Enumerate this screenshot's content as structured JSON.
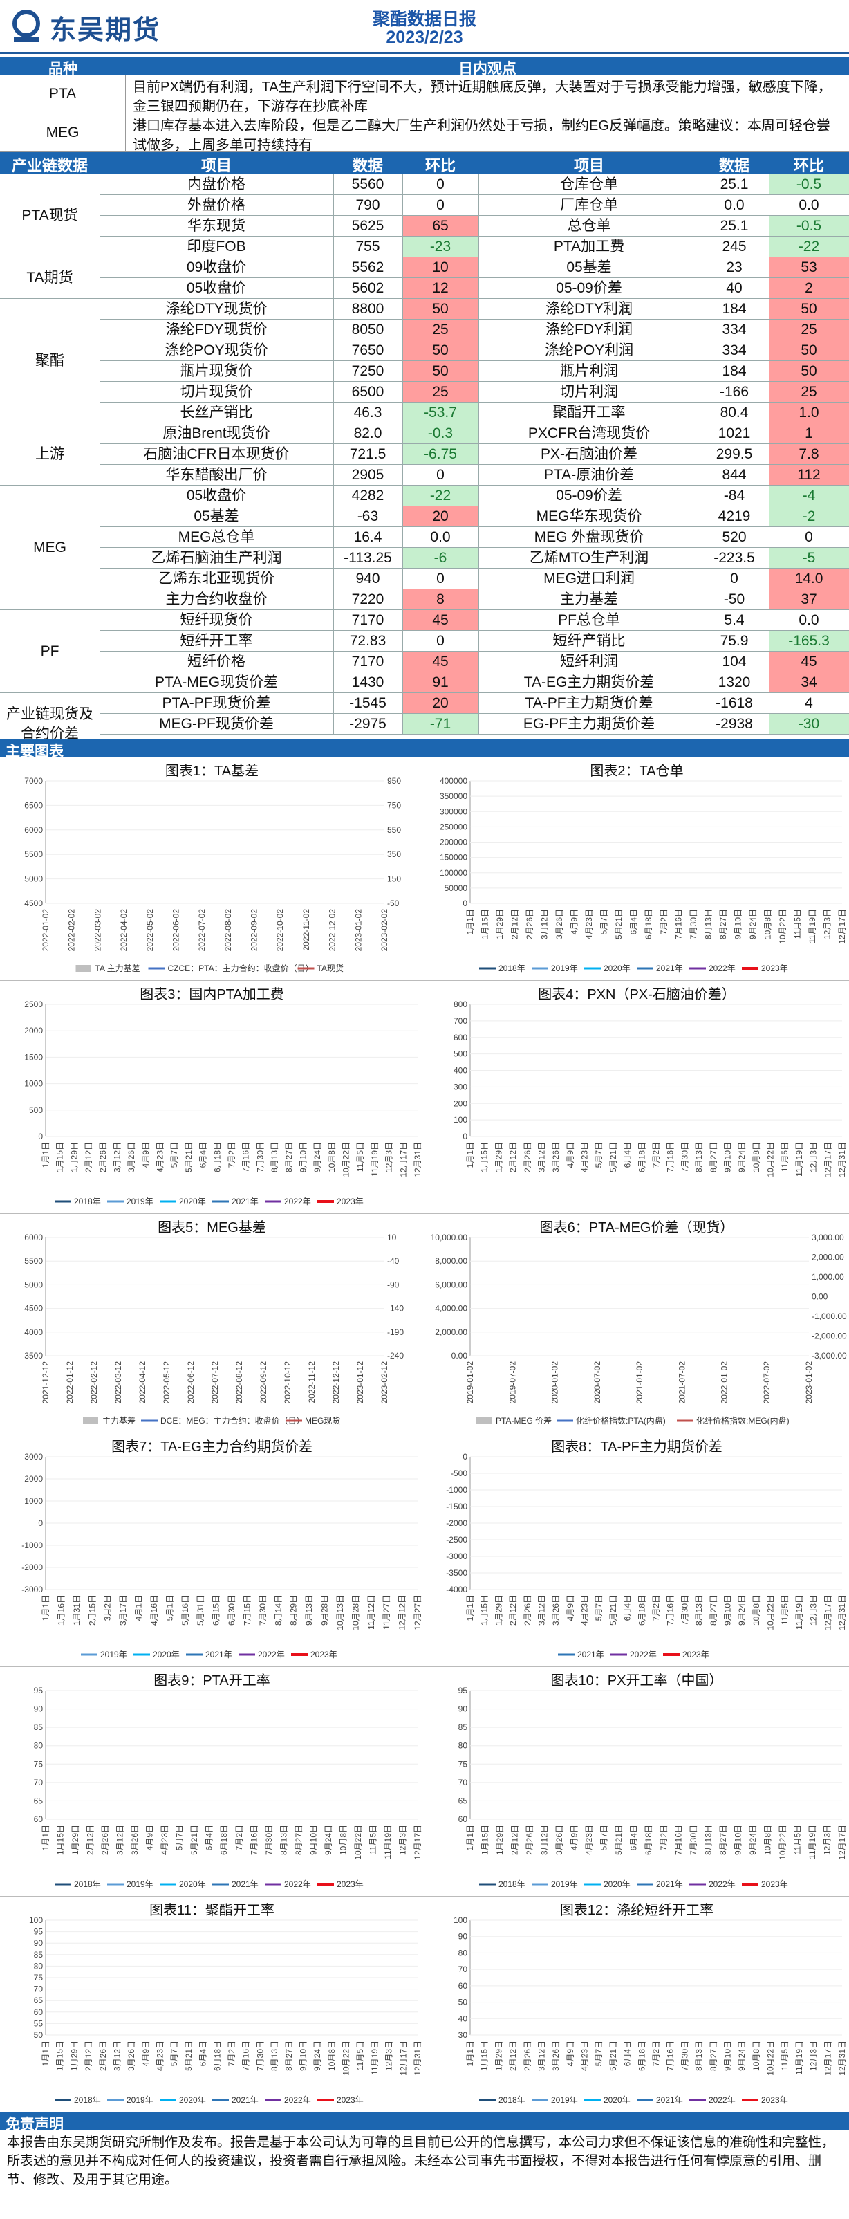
{
  "header": {
    "company": "东吴期货",
    "report_title": "聚酯数据日报",
    "report_date": "2023/2/23"
  },
  "views": {
    "head_category": "品种",
    "head_view": "日内观点",
    "rows": [
      {
        "label": "PTA",
        "text": "目前PX端仍有利润，TA生产利润下行空间不大，预计近期触底反弹，大装置对于亏损承受能力增强，敏感度下降，金三银四预期仍在，下游存在抄底补库"
      },
      {
        "label": "MEG",
        "text": "港口库存基本进入去库阶段，但是乙二醇大厂生产利润仍然处于亏损，制约EG反弹幅度。策略建议：本周可轻仓尝试做多，上周多单可持续持有"
      }
    ]
  },
  "table": {
    "headers": [
      "产业链数据",
      "项目",
      "数据",
      "环比",
      "项目",
      "数据",
      "环比"
    ],
    "categories": [
      {
        "name": "PTA现货",
        "rows": 4
      },
      {
        "name": "TA期货",
        "rows": 2
      },
      {
        "name": "聚酯",
        "rows": 6
      },
      {
        "name": "上游",
        "rows": 3
      },
      {
        "name": "MEG",
        "rows": 6
      },
      {
        "name": "PF",
        "rows": 4
      },
      {
        "name": "产业链现货及合约价差",
        "rows": 3
      }
    ],
    "rows": [
      {
        "l": "内盘价格",
        "lv": "5560",
        "lc": "0",
        "lcc": "",
        "r": "仓库仓单",
        "rv": "25.1",
        "rc": "-0.5",
        "rcc": "grn"
      },
      {
        "l": "外盘价格",
        "lv": "790",
        "lc": "0",
        "lcc": "",
        "r": "厂库仓单",
        "rv": "0.0",
        "rc": "0.0",
        "rcc": ""
      },
      {
        "l": "华东现货",
        "lv": "5625",
        "lc": "65",
        "lcc": "red",
        "r": "总仓单",
        "rv": "25.1",
        "rc": "-0.5",
        "rcc": "grn"
      },
      {
        "l": "印度FOB",
        "lv": "755",
        "lc": "-23",
        "lcc": "grn",
        "r": "PTA加工费",
        "rv": "245",
        "rc": "-22",
        "rcc": "grn"
      },
      {
        "l": "09收盘价",
        "lv": "5562",
        "lc": "10",
        "lcc": "red",
        "r": "05基差",
        "rv": "23",
        "rc": "53",
        "rcc": "red"
      },
      {
        "l": "05收盘价",
        "lv": "5602",
        "lc": "12",
        "lcc": "red",
        "r": "05-09价差",
        "rv": "40",
        "rc": "2",
        "rcc": "red"
      },
      {
        "l": "涤纶DTY现货价",
        "lv": "8800",
        "lc": "50",
        "lcc": "red",
        "r": "涤纶DTY利润",
        "rv": "184",
        "rc": "50",
        "rcc": "red"
      },
      {
        "l": "涤纶FDY现货价",
        "lv": "8050",
        "lc": "25",
        "lcc": "red",
        "r": "涤纶FDY利润",
        "rv": "334",
        "rc": "25",
        "rcc": "red"
      },
      {
        "l": "涤纶POY现货价",
        "lv": "7650",
        "lc": "50",
        "lcc": "red",
        "r": "涤纶POY利润",
        "rv": "334",
        "rc": "50",
        "rcc": "red"
      },
      {
        "l": "瓶片现货价",
        "lv": "7250",
        "lc": "50",
        "lcc": "red",
        "r": "瓶片利润",
        "rv": "184",
        "rc": "50",
        "rcc": "red"
      },
      {
        "l": "切片现货价",
        "lv": "6500",
        "lc": "25",
        "lcc": "red",
        "r": "切片利润",
        "rv": "-166",
        "rc": "25",
        "rcc": "red"
      },
      {
        "l": "长丝产销比",
        "lv": "46.3",
        "lc": "-53.7",
        "lcc": "grn",
        "r": "聚酯开工率",
        "rv": "80.4",
        "rc": "1.0",
        "rcc": "red"
      },
      {
        "l": "原油Brent现货价",
        "lv": "82.0",
        "lc": "-0.3",
        "lcc": "grn",
        "r": "PXCFR台湾现货价",
        "rv": "1021",
        "rc": "1",
        "rcc": "red"
      },
      {
        "l": "石脑油CFR日本现货价",
        "lv": "721.5",
        "lc": "-6.75",
        "lcc": "grn",
        "r": "PX-石脑油价差",
        "rv": "299.5",
        "rc": "7.8",
        "rcc": "red"
      },
      {
        "l": "华东醋酸出厂价",
        "lv": "2905",
        "lc": "0",
        "lcc": "",
        "r": "PTA-原油价差",
        "rv": "844",
        "rc": "112",
        "rcc": "red"
      },
      {
        "l": "05收盘价",
        "lv": "4282",
        "lc": "-22",
        "lcc": "grn",
        "r": "05-09价差",
        "rv": "-84",
        "rc": "-4",
        "rcc": "grn"
      },
      {
        "l": "05基差",
        "lv": "-63",
        "lc": "20",
        "lcc": "red",
        "r": "MEG华东现货价",
        "rv": "4219",
        "rc": "-2",
        "rcc": "grn"
      },
      {
        "l": "MEG总仓单",
        "lv": "16.4",
        "lc": "0.0",
        "lcc": "",
        "r": "MEG 外盘现货价",
        "rv": "520",
        "rc": "0",
        "rcc": ""
      },
      {
        "l": "乙烯石脑油生产利润",
        "lv": "-113.25",
        "lc": "-6",
        "lcc": "grn",
        "r": "乙烯MTO生产利润",
        "rv": "-223.5",
        "rc": "-5",
        "rcc": "grn"
      },
      {
        "l": "乙烯东北亚现货价",
        "lv": "940",
        "lc": "0",
        "lcc": "",
        "r": "MEG进口利润",
        "rv": "0",
        "rc": "14.0",
        "rcc": "red"
      },
      {
        "l": "主力合约收盘价",
        "lv": "7220",
        "lc": "8",
        "lcc": "red",
        "r": "主力基差",
        "rv": "-50",
        "rc": "37",
        "rcc": "red"
      },
      {
        "l": "短纤现货价",
        "lv": "7170",
        "lc": "45",
        "lcc": "red",
        "r": "PF总仓单",
        "rv": "5.4",
        "rc": "0.0",
        "rcc": ""
      },
      {
        "l": "短纤开工率",
        "lv": "72.83",
        "lc": "0",
        "lcc": "",
        "r": "短纤产销比",
        "rv": "75.9",
        "rc": "-165.3",
        "rcc": "grn"
      },
      {
        "l": "短纤价格",
        "lv": "7170",
        "lc": "45",
        "lcc": "red",
        "r": "短纤利润",
        "rv": "104",
        "rc": "45",
        "rcc": "red"
      },
      {
        "l": "PTA-MEG现货价差",
        "lv": "1430",
        "lc": "91",
        "lcc": "red",
        "r": "TA-EG主力期货价差",
        "rv": "1320",
        "rc": "34",
        "rcc": "red"
      },
      {
        "l": "PTA-PF现货价差",
        "lv": "-1545",
        "lc": "20",
        "lcc": "red",
        "r": "TA-PF主力期货价差",
        "rv": "-1618",
        "rc": "4",
        "rcc": ""
      },
      {
        "l": "MEG-PF现货价差",
        "lv": "-2975",
        "lc": "-71",
        "lcc": "grn",
        "r": "EG-PF主力期货价差",
        "rv": "-2938",
        "rc": "-30",
        "rcc": "grn"
      }
    ]
  },
  "charts_section": {
    "title": "主要图表"
  },
  "colors": {
    "y2018": "#1f4e79",
    "y2019": "#5b9bd5",
    "y2020": "#00b0f0",
    "y2021": "#2e75b6",
    "y2022": "#7030a0",
    "y2023": "#e8101a",
    "gray": "#bfbfbf",
    "blue": "#4472c4",
    "red": "#c0504d"
  },
  "charts": [
    {
      "title": "图表1：TA基差",
      "yl": [
        "7000",
        "6500",
        "6000",
        "5500",
        "5000",
        "4500"
      ],
      "yr": [
        "950",
        "750",
        "550",
        "350",
        "150",
        "-50"
      ],
      "x": [
        "2022-01-02",
        "2022-02-02",
        "2022-03-02",
        "2022-04-02",
        "2022-05-02",
        "2022-06-02",
        "2022-07-02",
        "2022-08-02",
        "2022-09-02",
        "2022-10-02",
        "2022-11-02",
        "2022-12-02",
        "2023-01-02",
        "2023-02-02"
      ],
      "legend": [
        {
          "t": "TA 主力基差",
          "c": "gray",
          "k": "area"
        },
        {
          "t": "CZCE：PTA：主力合约：收盘价（日）",
          "c": "blue",
          "k": "line"
        },
        {
          "t": "TA现货",
          "c": "red",
          "k": "line"
        }
      ]
    },
    {
      "title": "图表2：TA仓单",
      "yl": [
        "400000",
        "350000",
        "300000",
        "250000",
        "200000",
        "150000",
        "100000",
        "50000",
        "0"
      ],
      "yr": [],
      "x": [
        "1月1日",
        "1月15日",
        "1月29日",
        "2月12日",
        "2月26日",
        "3月12日",
        "3月26日",
        "4月9日",
        "4月23日",
        "5月7日",
        "5月21日",
        "6月4日",
        "6月18日",
        "7月2日",
        "7月16日",
        "7月30日",
        "8月13日",
        "8月27日",
        "9月10日",
        "9月24日",
        "10月8日",
        "10月22日",
        "11月5日",
        "11月19日",
        "12月3日",
        "12月17日"
      ],
      "legend": [
        {
          "t": "2018年",
          "c": "y2018",
          "k": "line"
        },
        {
          "t": "2019年",
          "c": "y2019",
          "k": "line"
        },
        {
          "t": "2020年",
          "c": "y2020",
          "k": "line"
        },
        {
          "t": "2021年",
          "c": "y2021",
          "k": "line"
        },
        {
          "t": "2022年",
          "c": "y2022",
          "k": "line"
        },
        {
          "t": "2023年",
          "c": "y2023",
          "k": "line"
        }
      ]
    },
    {
      "title": "图表3：国内PTA加工费",
      "yl": [
        "2500",
        "2000",
        "1500",
        "1000",
        "500",
        "0"
      ],
      "yr": [],
      "x": [
        "1月1日",
        "1月15日",
        "1月29日",
        "2月12日",
        "2月26日",
        "3月12日",
        "3月26日",
        "4月9日",
        "4月23日",
        "5月7日",
        "5月21日",
        "6月4日",
        "6月18日",
        "7月2日",
        "7月16日",
        "7月30日",
        "8月13日",
        "8月27日",
        "9月10日",
        "9月24日",
        "10月8日",
        "10月22日",
        "11月5日",
        "11月19日",
        "12月3日",
        "12月17日",
        "12月31日"
      ],
      "legend": [
        {
          "t": "2018年",
          "c": "y2018",
          "k": "line"
        },
        {
          "t": "2019年",
          "c": "y2019",
          "k": "line"
        },
        {
          "t": "2020年",
          "c": "y2020",
          "k": "line"
        },
        {
          "t": "2021年",
          "c": "y2021",
          "k": "line"
        },
        {
          "t": "2022年",
          "c": "y2022",
          "k": "line"
        },
        {
          "t": "2023年",
          "c": "y2023",
          "k": "line"
        }
      ]
    },
    {
      "title": "图表4：PXN（PX-石脑油价差）",
      "yl": [
        "800",
        "700",
        "600",
        "500",
        "400",
        "300",
        "200",
        "100",
        "0"
      ],
      "yr": [],
      "x": [
        "1月1日",
        "1月15日",
        "1月29日",
        "2月12日",
        "2月26日",
        "3月12日",
        "3月26日",
        "4月9日",
        "4月23日",
        "5月7日",
        "5月21日",
        "6月4日",
        "6月18日",
        "7月2日",
        "7月16日",
        "7月30日",
        "8月13日",
        "8月27日",
        "9月10日",
        "9月24日",
        "10月8日",
        "10月22日",
        "11月5日",
        "11月19日",
        "12月3日",
        "12月17日",
        "12月31日"
      ],
      "legend": []
    },
    {
      "title": "图表5：MEG基差",
      "yl": [
        "6000",
        "5500",
        "5000",
        "4500",
        "4000",
        "3500"
      ],
      "yr": [
        "10",
        "-40",
        "-90",
        "-140",
        "-190",
        "-240"
      ],
      "x": [
        "2021-12-12",
        "2022-01-12",
        "2022-02-12",
        "2022-03-12",
        "2022-04-12",
        "2022-05-12",
        "2022-06-12",
        "2022-07-12",
        "2022-08-12",
        "2022-09-12",
        "2022-10-12",
        "2022-11-12",
        "2022-12-12",
        "2023-01-12",
        "2023-02-12"
      ],
      "legend": [
        {
          "t": "主力基差",
          "c": "gray",
          "k": "area"
        },
        {
          "t": "DCE：MEG：主力合约：收盘价（日）",
          "c": "blue",
          "k": "line"
        },
        {
          "t": "MEG现货",
          "c": "red",
          "k": "line"
        }
      ]
    },
    {
      "title": "图表6：PTA-MEG价差（现货）",
      "yl": [
        "10,000.00",
        "8,000.00",
        "6,000.00",
        "4,000.00",
        "2,000.00",
        "0.00"
      ],
      "yr": [
        "3,000.00",
        "2,000.00",
        "1,000.00",
        "0.00",
        "-1,000.00",
        "-2,000.00",
        "-3,000.00"
      ],
      "x": [
        "2019-01-02",
        "2019-07-02",
        "2020-01-02",
        "2020-07-02",
        "2021-01-02",
        "2021-07-02",
        "2022-01-02",
        "2022-07-02",
        "2023-01-02"
      ],
      "legend": [
        {
          "t": "PTA-MEG 价差",
          "c": "gray",
          "k": "area"
        },
        {
          "t": "化纤价格指数:PTA(内盘)",
          "c": "blue",
          "k": "line"
        },
        {
          "t": "化纤价格指数:MEG(内盘)",
          "c": "red",
          "k": "line"
        }
      ]
    },
    {
      "title": "图表7：TA-EG主力合约期货价差",
      "yl": [
        "3000",
        "2000",
        "1000",
        "0",
        "-1000",
        "-2000",
        "-3000"
      ],
      "yr": [],
      "x": [
        "1月1日",
        "1月16日",
        "1月31日",
        "2月15日",
        "3月2日",
        "3月17日",
        "4月1日",
        "4月16日",
        "5月1日",
        "5月16日",
        "5月31日",
        "6月15日",
        "6月30日",
        "7月15日",
        "7月30日",
        "8月14日",
        "8月29日",
        "9月13日",
        "9月28日",
        "10月13日",
        "10月28日",
        "11月12日",
        "11月27日",
        "12月12日",
        "12月27日"
      ],
      "legend": [
        {
          "t": "2019年",
          "c": "y2019",
          "k": "line"
        },
        {
          "t": "2020年",
          "c": "y2020",
          "k": "line"
        },
        {
          "t": "2021年",
          "c": "y2021",
          "k": "line"
        },
        {
          "t": "2022年",
          "c": "y2022",
          "k": "line"
        },
        {
          "t": "2023年",
          "c": "y2023",
          "k": "line"
        }
      ]
    },
    {
      "title": "图表8：TA-PF主力期货价差",
      "yl": [
        "0",
        "-500",
        "-1000",
        "-1500",
        "-2000",
        "-2500",
        "-3000",
        "-3500",
        "-4000"
      ],
      "yr": [],
      "x": [
        "1月1日",
        "1月15日",
        "1月29日",
        "2月12日",
        "2月26日",
        "3月12日",
        "3月26日",
        "4月9日",
        "4月23日",
        "5月7日",
        "5月21日",
        "6月4日",
        "6月18日",
        "7月2日",
        "7月16日",
        "7月30日",
        "8月13日",
        "8月27日",
        "9月10日",
        "9月24日",
        "10月8日",
        "10月22日",
        "11月5日",
        "11月19日",
        "12月3日",
        "12月17日",
        "12月31日"
      ],
      "legend": [
        {
          "t": "2021年",
          "c": "y2021",
          "k": "line"
        },
        {
          "t": "2022年",
          "c": "y2022",
          "k": "line"
        },
        {
          "t": "2023年",
          "c": "y2023",
          "k": "line"
        }
      ]
    },
    {
      "title": "图表9：PTA开工率",
      "yl": [
        "95",
        "90",
        "85",
        "80",
        "75",
        "70",
        "65",
        "60"
      ],
      "yr": [],
      "x": [
        "1月1日",
        "1月15日",
        "1月29日",
        "2月12日",
        "2月26日",
        "3月12日",
        "3月26日",
        "4月9日",
        "4月23日",
        "5月7日",
        "5月21日",
        "6月4日",
        "6月18日",
        "7月2日",
        "7月16日",
        "7月30日",
        "8月13日",
        "8月27日",
        "9月10日",
        "9月24日",
        "10月8日",
        "10月22日",
        "11月5日",
        "11月19日",
        "12月3日",
        "12月17日"
      ],
      "legend": [
        {
          "t": "2018年",
          "c": "y2018",
          "k": "line"
        },
        {
          "t": "2019年",
          "c": "y2019",
          "k": "line"
        },
        {
          "t": "2020年",
          "c": "y2020",
          "k": "line"
        },
        {
          "t": "2021年",
          "c": "y2021",
          "k": "line"
        },
        {
          "t": "2022年",
          "c": "y2022",
          "k": "line"
        },
        {
          "t": "2023年",
          "c": "y2023",
          "k": "line"
        }
      ]
    },
    {
      "title": "图表10：PX开工率（中国）",
      "yl": [
        "95",
        "90",
        "85",
        "80",
        "75",
        "70",
        "65",
        "60"
      ],
      "yr": [],
      "x": [
        "1月1日",
        "1月15日",
        "1月29日",
        "2月12日",
        "2月26日",
        "3月12日",
        "3月26日",
        "4月9日",
        "4月23日",
        "5月7日",
        "5月21日",
        "6月4日",
        "6月18日",
        "7月2日",
        "7月16日",
        "7月30日",
        "8月13日",
        "8月27日",
        "9月10日",
        "9月24日",
        "10月8日",
        "10月22日",
        "11月5日",
        "11月19日",
        "12月3日",
        "12月17日"
      ],
      "legend": [
        {
          "t": "2018年",
          "c": "y2018",
          "k": "line"
        },
        {
          "t": "2019年",
          "c": "y2019",
          "k": "line"
        },
        {
          "t": "2020年",
          "c": "y2020",
          "k": "line"
        },
        {
          "t": "2021年",
          "c": "y2021",
          "k": "line"
        },
        {
          "t": "2022年",
          "c": "y2022",
          "k": "line"
        },
        {
          "t": "2023年",
          "c": "y2023",
          "k": "line"
        }
      ]
    },
    {
      "title": "图表11：聚酯开工率",
      "yl": [
        "100",
        "95",
        "90",
        "85",
        "80",
        "75",
        "70",
        "65",
        "60",
        "55",
        "50"
      ],
      "yr": [],
      "x": [
        "1月1日",
        "1月15日",
        "1月29日",
        "2月12日",
        "2月26日",
        "3月12日",
        "3月26日",
        "4月9日",
        "4月23日",
        "5月7日",
        "5月21日",
        "6月4日",
        "6月18日",
        "7月2日",
        "7月16日",
        "7月30日",
        "8月13日",
        "8月27日",
        "9月10日",
        "9月24日",
        "10月8日",
        "10月22日",
        "11月5日",
        "11月19日",
        "12月3日",
        "12月17日",
        "12月31日"
      ],
      "legend": [
        {
          "t": "2018年",
          "c": "y2018",
          "k": "line"
        },
        {
          "t": "2019年",
          "c": "y2019",
          "k": "line"
        },
        {
          "t": "2020年",
          "c": "y2020",
          "k": "line"
        },
        {
          "t": "2021年",
          "c": "y2021",
          "k": "line"
        },
        {
          "t": "2022年",
          "c": "y2022",
          "k": "line"
        },
        {
          "t": "2023年",
          "c": "y2023",
          "k": "line"
        }
      ]
    },
    {
      "title": "图表12：涤纶短纤开工率",
      "yl": [
        "100",
        "90",
        "80",
        "70",
        "60",
        "50",
        "40",
        "30"
      ],
      "yr": [],
      "x": [
        "1月1日",
        "1月15日",
        "1月29日",
        "2月12日",
        "2月26日",
        "3月12日",
        "3月26日",
        "4月9日",
        "4月23日",
        "5月7日",
        "5月21日",
        "6月4日",
        "6月18日",
        "7月2日",
        "7月16日",
        "7月30日",
        "8月13日",
        "8月27日",
        "9月10日",
        "9月24日",
        "10月8日",
        "10月22日",
        "11月5日",
        "11月19日",
        "12月3日",
        "12月17日",
        "12月31日"
      ],
      "legend": [
        {
          "t": "2018年",
          "c": "y2018",
          "k": "line"
        },
        {
          "t": "2019年",
          "c": "y2019",
          "k": "line"
        },
        {
          "t": "2020年",
          "c": "y2020",
          "k": "line"
        },
        {
          "t": "2021年",
          "c": "y2021",
          "k": "line"
        },
        {
          "t": "2022年",
          "c": "y2022",
          "k": "line"
        },
        {
          "t": "2023年",
          "c": "y2023",
          "k": "line"
        }
      ]
    }
  ],
  "disclaimer": {
    "title": "免责声明",
    "text": "本报告由东吴期货研究所制作及发布。报告是基于本公司认为可靠的且目前已公开的信息撰写，本公司力求但不保证该信息的准确性和完整性，所表述的意见并不构成对任何人的投资建议，投资者需自行承担风险。未经本公司事先书面授权，不得对本报告进行任何有悖原意的引用、删节、修改、及用于其它用途。"
  }
}
